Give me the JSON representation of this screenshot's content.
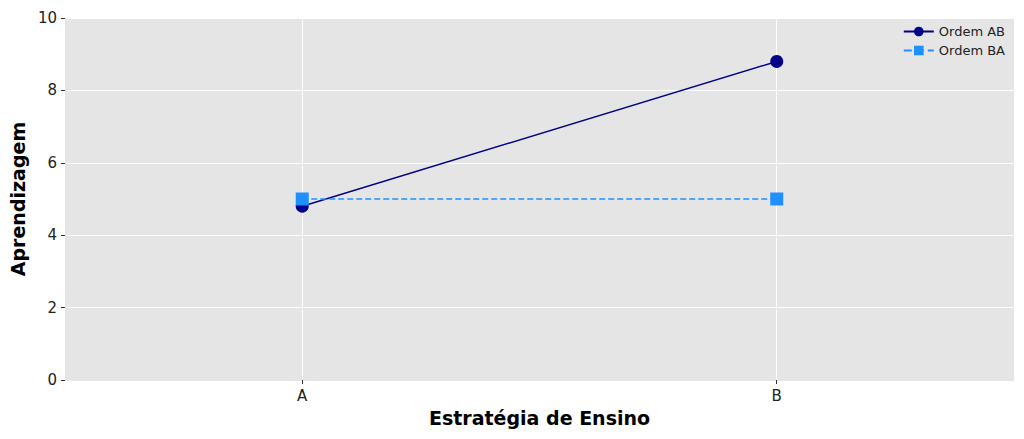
{
  "chart_data": {
    "type": "line",
    "x_label": "Estratégia de Ensino",
    "y_label": "Aprendizagem",
    "categories": [
      "A",
      "B"
    ],
    "series": [
      {
        "name": "Ordem AB",
        "color": "#00008b",
        "marker": "circle",
        "line_style": "solid",
        "values": [
          4.8,
          8.8
        ]
      },
      {
        "name": "Ordem BA",
        "color": "#1e90ff",
        "marker": "square",
        "line_style": "dashed",
        "values": [
          5.0,
          5.0
        ]
      }
    ],
    "ylim": [
      0,
      10
    ],
    "yticks": [
      0,
      2,
      4,
      6,
      8,
      10
    ],
    "grid": true,
    "legend": "upper right"
  }
}
